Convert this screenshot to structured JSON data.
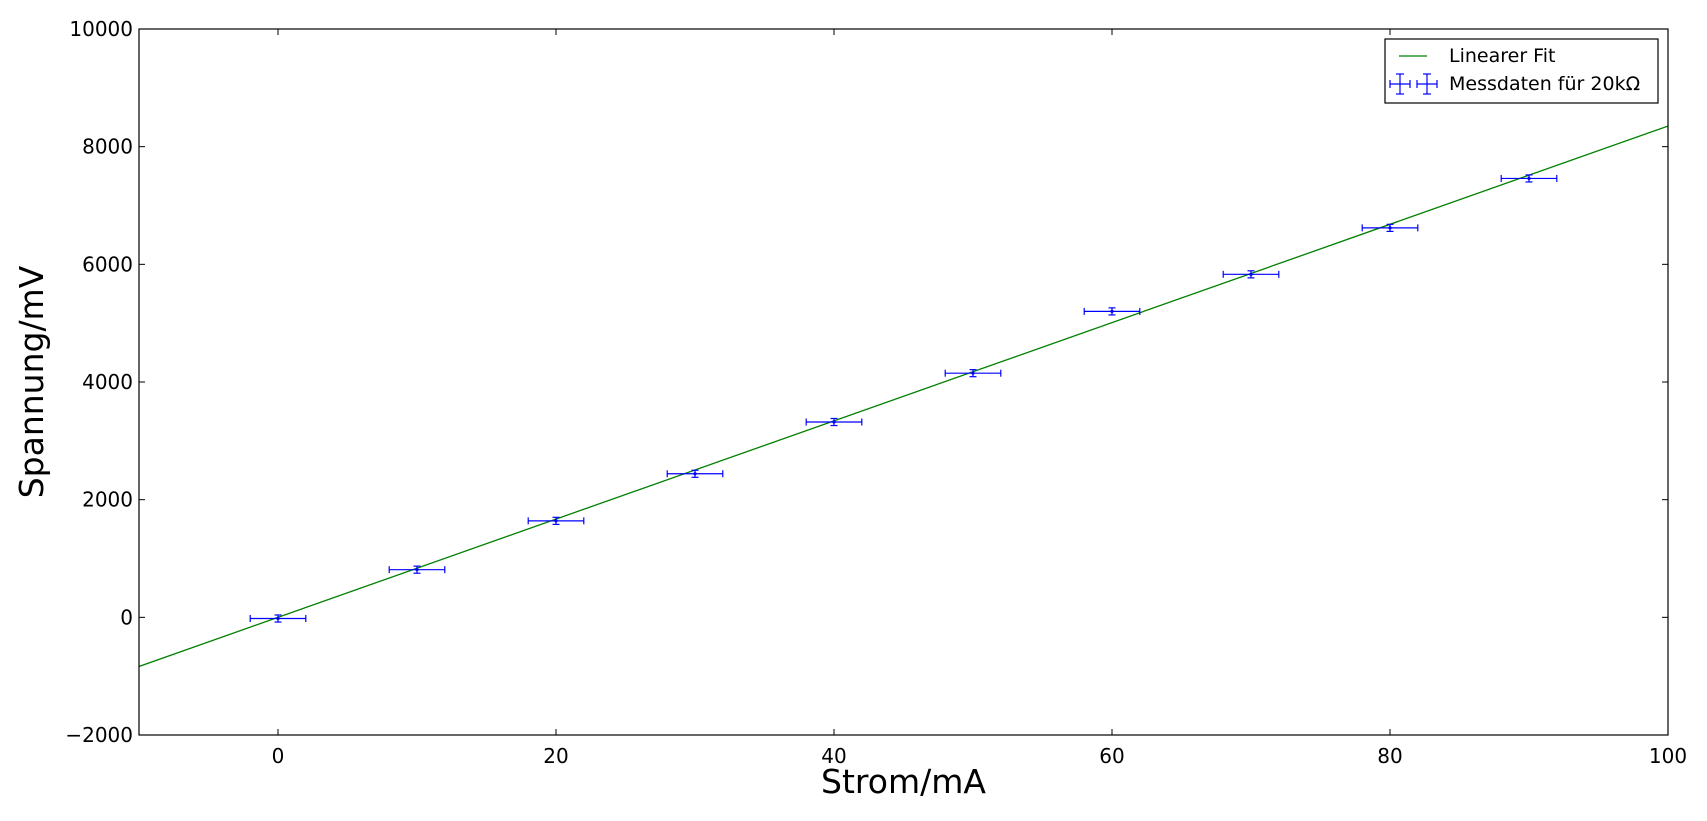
{
  "chart_data": {
    "type": "scatter",
    "xlabel": "Strom/mA",
    "ylabel": "Spannung/mV",
    "xlim": [
      -10,
      100
    ],
    "ylim": [
      -2000,
      10000
    ],
    "xticks": [
      0,
      20,
      40,
      60,
      80,
      100
    ],
    "yticks": [
      -2000,
      0,
      2000,
      4000,
      6000,
      8000,
      10000
    ],
    "xtick_labels": [
      "0",
      "20",
      "40",
      "60",
      "80",
      "100"
    ],
    "ytick_labels": [
      "−2000",
      "0",
      "2000",
      "4000",
      "6000",
      "8000",
      "10000"
    ],
    "grid": false,
    "legend_position": "top-right",
    "series": [
      {
        "name": "Messdaten für 20kΩ",
        "kind": "errorbar",
        "color": "#0000ff",
        "x": [
          0,
          10,
          20,
          30,
          40,
          50,
          60,
          70,
          80,
          90
        ],
        "y": [
          -20,
          810,
          1640,
          2440,
          3320,
          4150,
          5200,
          5830,
          6620,
          7460
        ],
        "xerr": 2,
        "yerr": 60
      },
      {
        "name": "Linearer Fit",
        "kind": "line",
        "color": "#008000",
        "slope": 83.5,
        "intercept": 0
      }
    ]
  }
}
